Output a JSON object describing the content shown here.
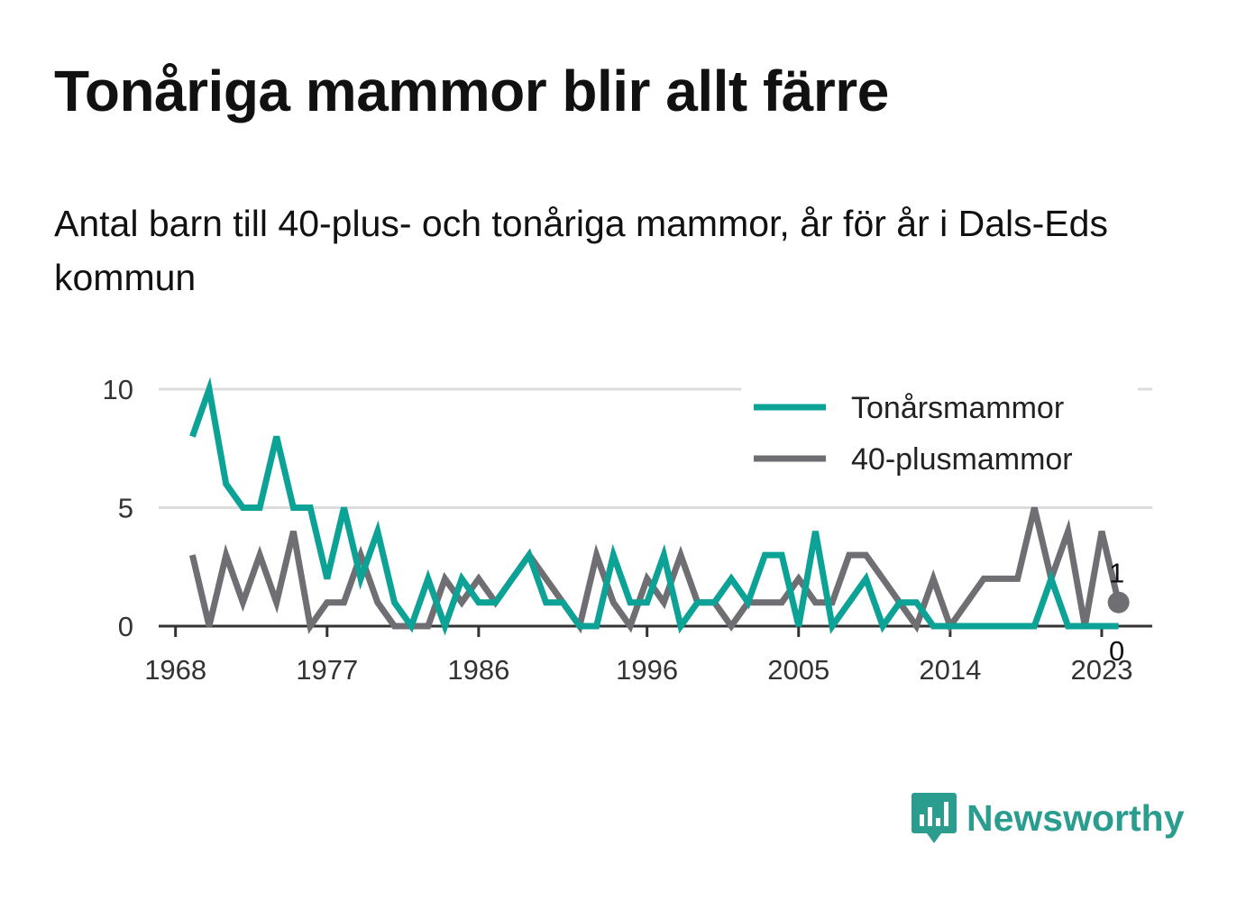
{
  "header": {
    "title": "Tonåriga mammor blir allt färre",
    "subtitle": "Antal barn till 40-plus- och tonåriga mammor, år för år i Dals-Eds kommun"
  },
  "brand": {
    "name": "Newsworthy",
    "icon": "newsworthy-logo-icon",
    "color": "#2a9d8f"
  },
  "chart_data": {
    "type": "line",
    "title": "Tonåriga mammor blir allt färre",
    "subtitle": "Antal barn till 40-plus- och tonåriga mammor, år för år i Dals-Eds kommun",
    "xlabel": "",
    "ylabel": "",
    "x": [
      1969,
      1970,
      1971,
      1972,
      1973,
      1974,
      1975,
      1976,
      1977,
      1978,
      1979,
      1980,
      1981,
      1982,
      1983,
      1984,
      1985,
      1986,
      1987,
      1988,
      1989,
      1990,
      1991,
      1992,
      1993,
      1994,
      1995,
      1996,
      1997,
      1998,
      1999,
      2000,
      2001,
      2002,
      2003,
      2004,
      2005,
      2006,
      2007,
      2008,
      2009,
      2010,
      2011,
      2012,
      2013,
      2014,
      2015,
      2016,
      2017,
      2018,
      2019,
      2020,
      2021,
      2022,
      2023,
      2024
    ],
    "x_ticks": [
      "1968",
      "1977",
      "1986",
      "1996",
      "2005",
      "2014",
      "2023"
    ],
    "x_tick_values": [
      1968,
      1977,
      1986,
      1996,
      2005,
      2014,
      2023
    ],
    "xlim": [
      1967,
      2026
    ],
    "y_ticks": [
      "0",
      "5",
      "10"
    ],
    "y_tick_values": [
      0,
      5,
      10
    ],
    "ylim": [
      0,
      10
    ],
    "grid": true,
    "legend_position": "top-right",
    "series": [
      {
        "name": "Tonårsmammor",
        "color": "#0ca296",
        "values": [
          8,
          10,
          6,
          5,
          5,
          8,
          5,
          5,
          2,
          5,
          2,
          4,
          1,
          0,
          2,
          0,
          2,
          1,
          1,
          2,
          3,
          1,
          1,
          0,
          0,
          3,
          1,
          1,
          3,
          0,
          1,
          1,
          2,
          1,
          3,
          3,
          0,
          4,
          0,
          1,
          2,
          0,
          1,
          1,
          0,
          0,
          0,
          0,
          0,
          0,
          0,
          2,
          0,
          0,
          0,
          0
        ]
      },
      {
        "name": "40-plusmammor",
        "color": "#6e6e73",
        "values": [
          3,
          0,
          3,
          1,
          3,
          1,
          4,
          0,
          1,
          1,
          3,
          1,
          0,
          0,
          0,
          2,
          1,
          2,
          1,
          2,
          3,
          2,
          1,
          0,
          3,
          1,
          0,
          2,
          1,
          3,
          1,
          1,
          0,
          1,
          1,
          1,
          2,
          1,
          1,
          3,
          3,
          2,
          1,
          0,
          2,
          0,
          1,
          2,
          2,
          2,
          5,
          2,
          4,
          0,
          4,
          1
        ]
      }
    ],
    "end_labels": [
      {
        "series": "40-plusmammor",
        "text": "1"
      },
      {
        "series": "Tonårsmammor",
        "text": "0"
      }
    ]
  }
}
